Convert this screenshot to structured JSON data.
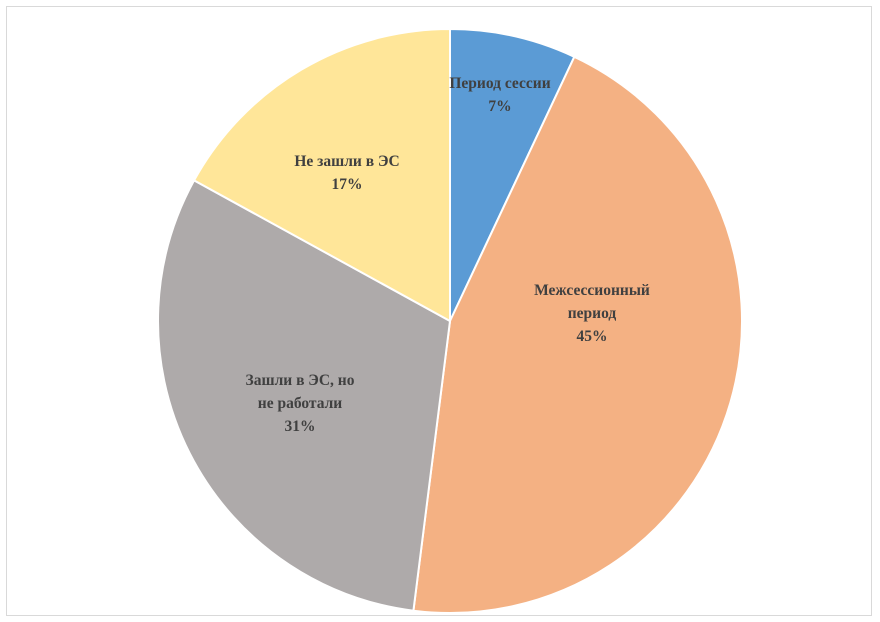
{
  "chart_data": {
    "type": "pie",
    "title": "",
    "start_angle_deg": 0,
    "direction": "clockwise",
    "slices": [
      {
        "label": "Период сессии",
        "value": 7,
        "display": "7%",
        "color": "#5b9bd5"
      },
      {
        "label": "Межсессионный период",
        "label_lines": [
          "Межсессионный",
          "период"
        ],
        "value": 45,
        "display": "45%",
        "color": "#f4b183"
      },
      {
        "label": "Зашли в ЭС, но не работали",
        "label_lines": [
          "Зашли в ЭС, но",
          "не работали"
        ],
        "value": 31,
        "display": "31%",
        "color": "#aeaaaa"
      },
      {
        "label": "Не зашли в ЭС",
        "value": 17,
        "display": "17%",
        "color": "#ffe699"
      }
    ]
  }
}
